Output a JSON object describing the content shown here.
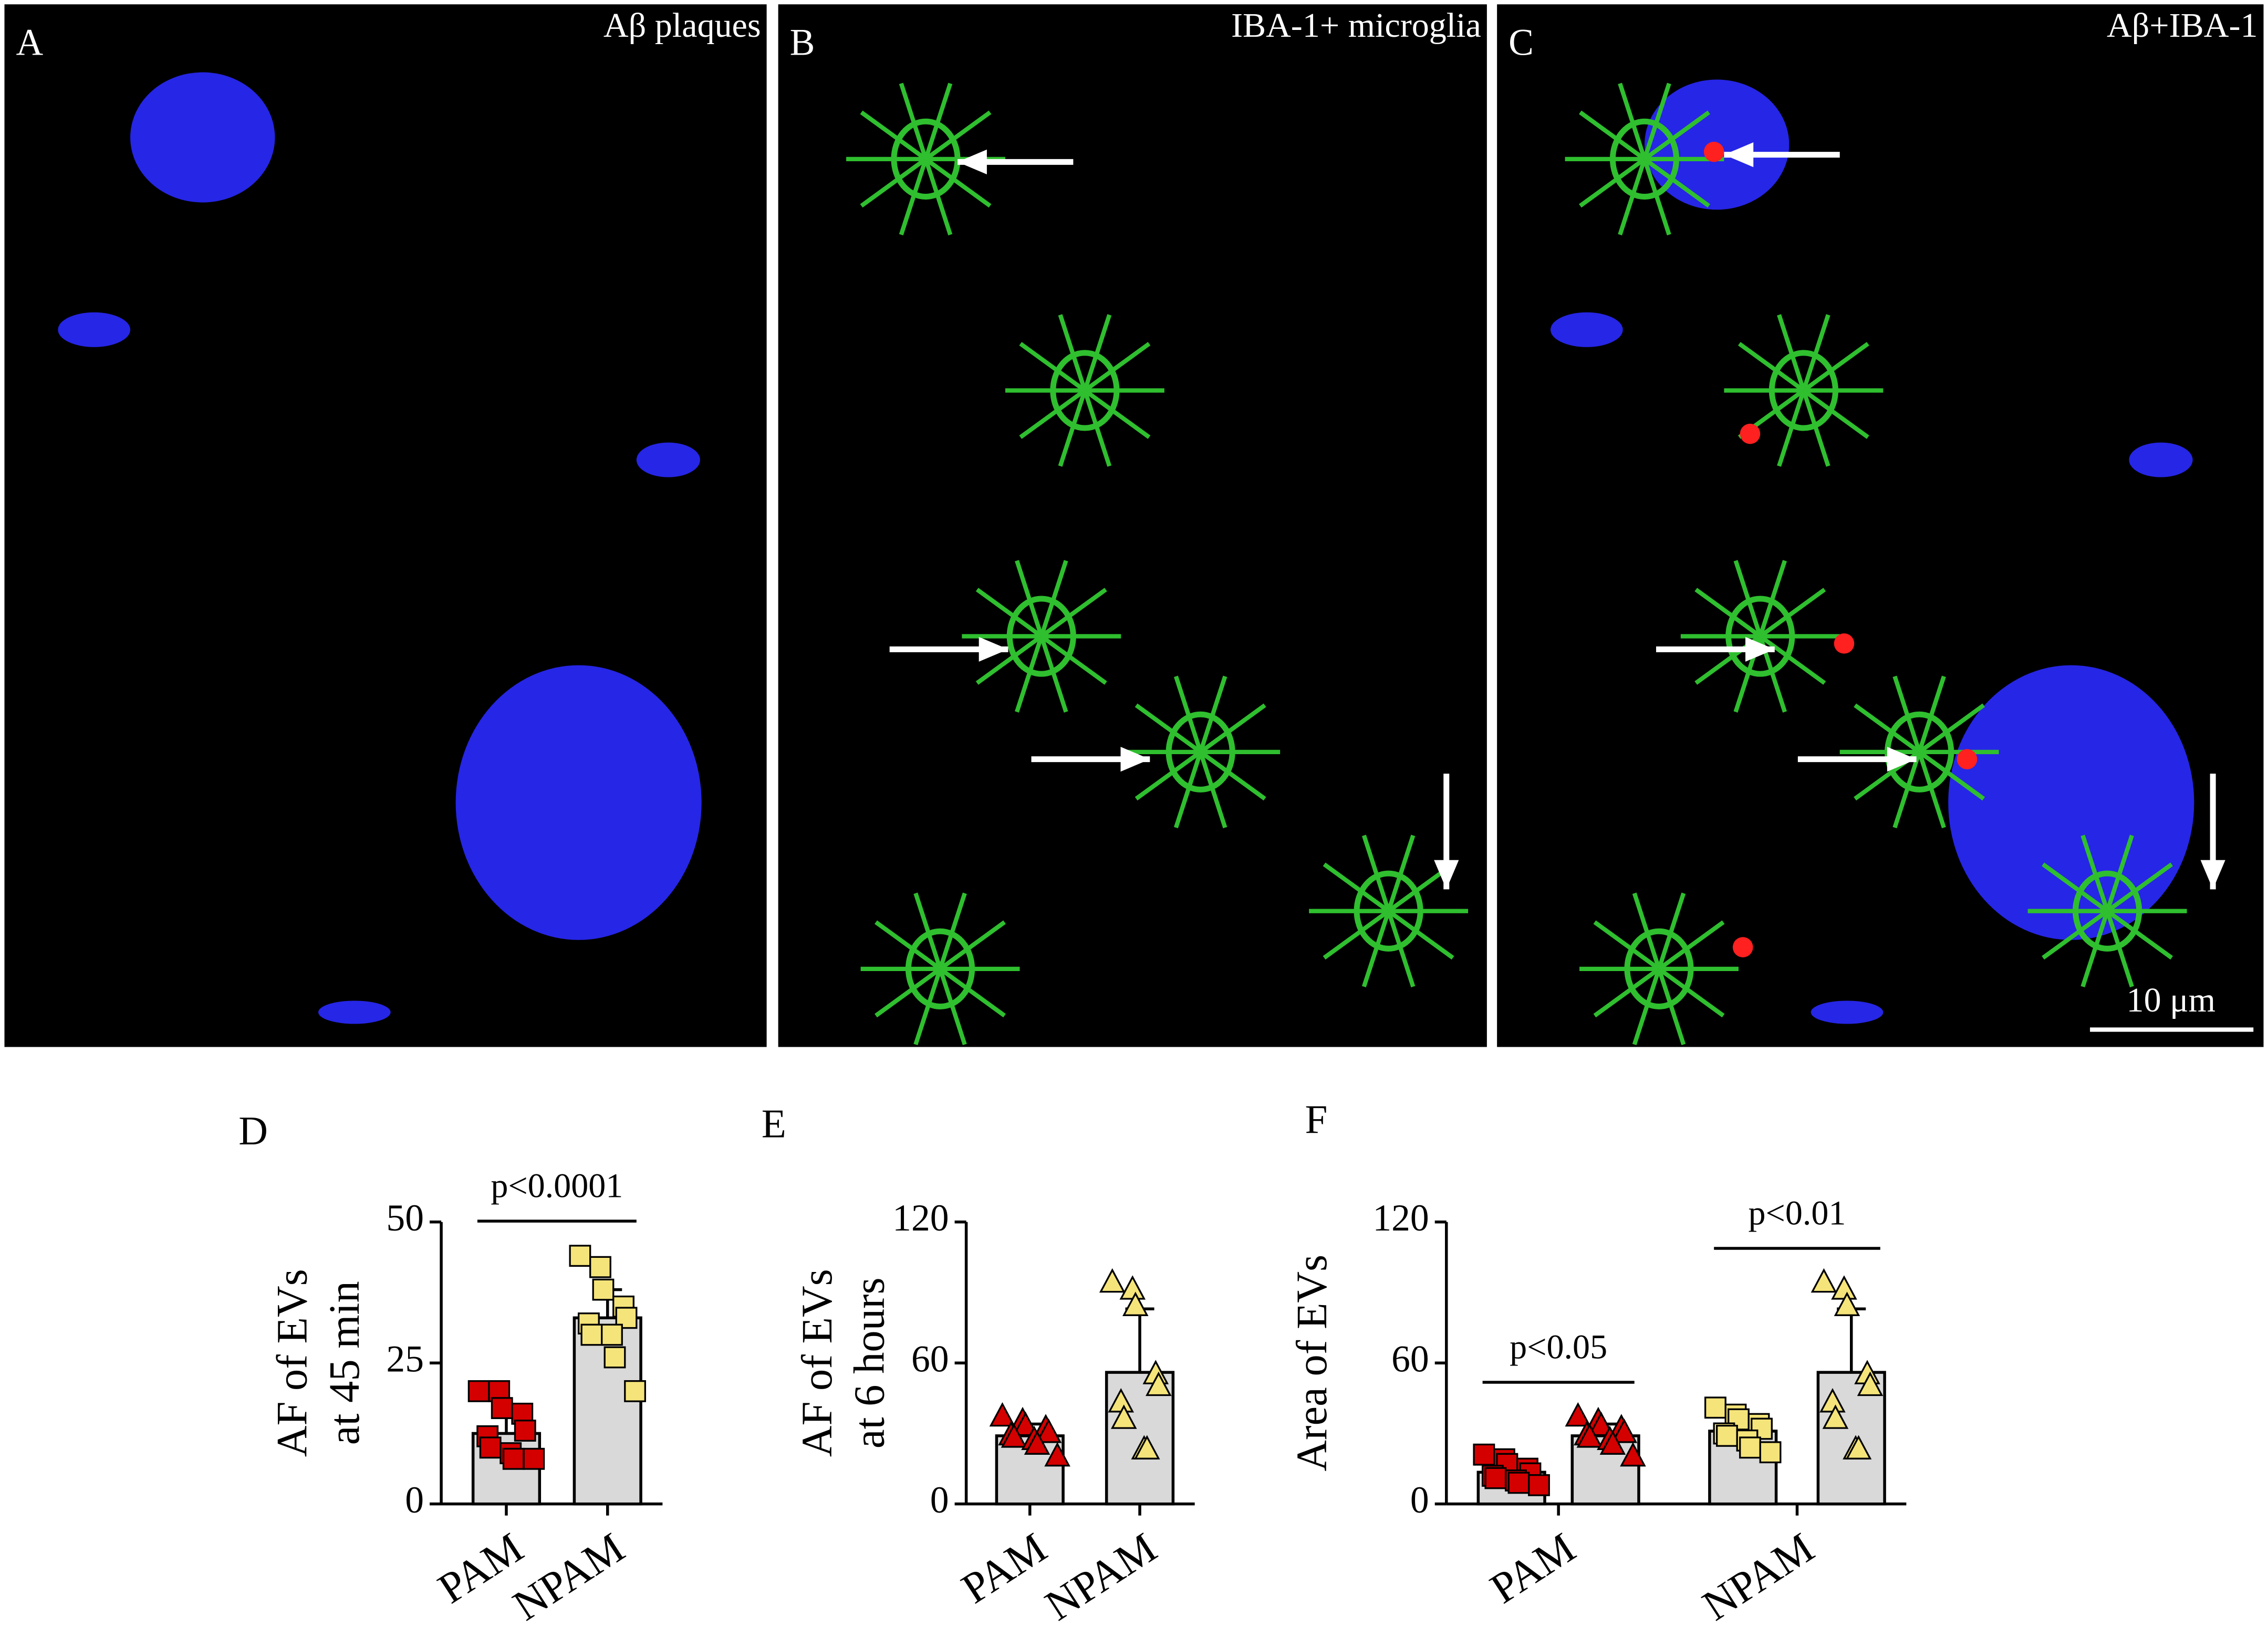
{
  "panels": [
    {
      "letter": "A",
      "title": "Aβ plaques"
    },
    {
      "letter": "B",
      "title": "IBA-1+ microglia"
    },
    {
      "letter": "C",
      "title": "Aβ+IBA-1"
    }
  ],
  "scale_bar": "10 μm",
  "chart_data": [
    {
      "type": "bar",
      "letter": "D",
      "ylabel": [
        "AF of EVs",
        "at 45 min"
      ],
      "categories": [
        "PAM",
        "NPAM"
      ],
      "ylim": [
        0,
        50
      ],
      "yticks": [
        0,
        25,
        50
      ],
      "bar_color": "#d9d9d9",
      "series": [
        {
          "marker": "square",
          "colors": [
            "#d40000",
            "#f5e47a"
          ],
          "values": [
            12.5,
            33
          ],
          "errors": [
            4.5,
            5
          ],
          "points": [
            [
              20,
              20,
              17,
              16,
              13,
              12,
              10,
              9,
              8,
              8
            ],
            [
              44,
              42,
              38,
              35,
              33,
              32,
              30,
              30,
              26,
              20
            ]
          ]
        }
      ],
      "annotations": [
        {
          "text": "p<0.0001",
          "span": [
            0,
            1
          ]
        }
      ]
    },
    {
      "type": "bar",
      "letter": "E",
      "ylabel": [
        "AF of EVs",
        "at 6 hours"
      ],
      "categories": [
        "PAM",
        "NPAM"
      ],
      "ylim": [
        0,
        120
      ],
      "yticks": [
        0,
        60,
        120
      ],
      "bar_color": "#d9d9d9",
      "series": [
        {
          "marker": "triangle",
          "colors": [
            "#d40000",
            "#f5e47a"
          ],
          "values": [
            29,
            56
          ],
          "errors": [
            5,
            27
          ],
          "points": [
            [
              37,
              35,
              33,
              32,
              30,
              29,
              28,
              27,
              25,
              20
            ],
            [
              94,
              91,
              84,
              55,
              50,
              43,
              36,
              23,
              23
            ]
          ]
        }
      ],
      "annotations": []
    },
    {
      "type": "bar",
      "letter": "F",
      "ylabel": [
        "Area of EVs"
      ],
      "categories": [
        "PAM",
        "NPAM"
      ],
      "ylim": [
        0,
        120
      ],
      "yticks": [
        0,
        60,
        120
      ],
      "bar_color": "#d9d9d9",
      "series": [
        {
          "marker": "square",
          "colors": [
            "#d40000",
            "#f5e47a"
          ],
          "values": [
            13.5,
            31
          ],
          "errors": [
            5,
            6
          ],
          "points": [
            [
              21,
              19,
              17,
              15,
              13,
              12,
              11,
              10,
              9,
              8
            ],
            [
              41,
              38,
              36,
              34,
              32,
              30,
              29,
              27,
              24,
              22
            ]
          ]
        },
        {
          "marker": "triangle",
          "colors": [
            "#d40000",
            "#f5e47a"
          ],
          "values": [
            29,
            56
          ],
          "errors": [
            5,
            27
          ],
          "points": [
            [
              37,
              35,
              33,
              32,
              30,
              29,
              28,
              27,
              25,
              20
            ],
            [
              94,
              91,
              84,
              55,
              50,
              43,
              36,
              23,
              23
            ]
          ]
        }
      ],
      "annotations": [
        {
          "text": "p<0.05",
          "span": [
            0,
            1
          ]
        },
        {
          "text": "p<0.01",
          "span": [
            2,
            3
          ]
        }
      ]
    }
  ]
}
